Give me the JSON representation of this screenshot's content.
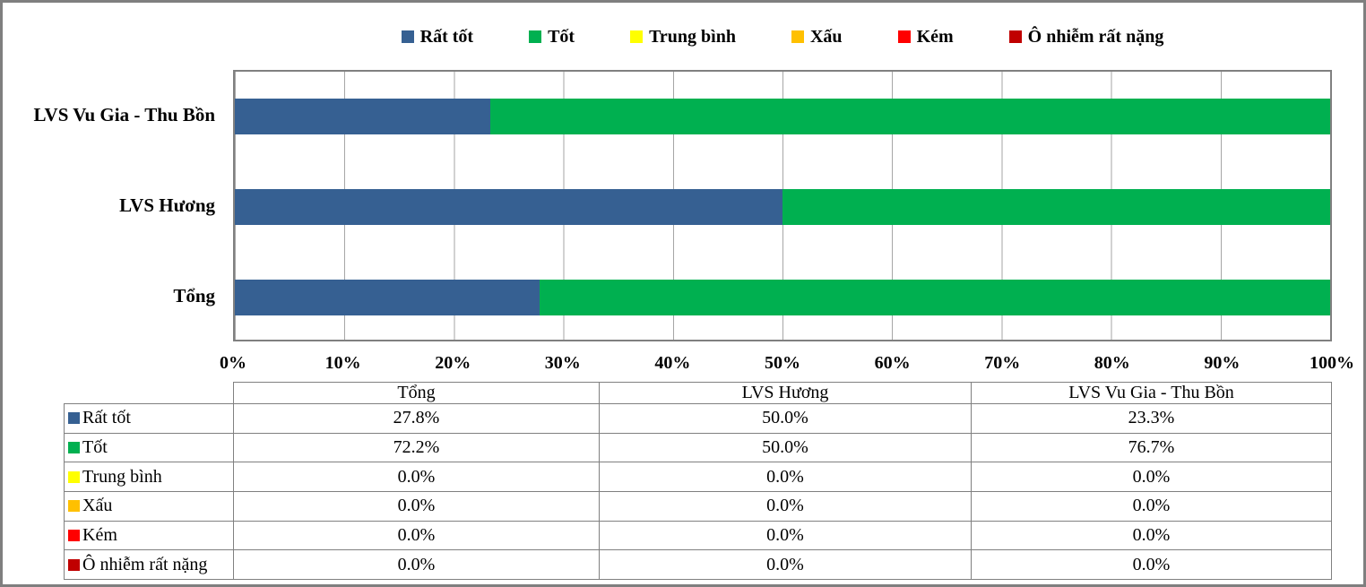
{
  "colors": {
    "very_good_blue": "#366092",
    "good_green": "#00B050",
    "average_yellow": "#FFFF00",
    "bad_orange": "#FFC000",
    "poor_red": "#FF0000",
    "very_polluted_dark_red": "#C00000",
    "plot_border": "#808080",
    "gridline": "#A6A6A6",
    "frame_border": "#7F7F7F"
  },
  "legend": {
    "items": [
      {
        "label": "Rất tốt",
        "color": "#366092"
      },
      {
        "label": "Tốt",
        "color": "#00B050"
      },
      {
        "label": "Trung bình",
        "color": "#FFFF00"
      },
      {
        "label": "Xấu",
        "color": "#FFC000"
      },
      {
        "label": "Kém",
        "color": "#FF0000"
      },
      {
        "label": "Ô nhiễm rất nặng",
        "color": "#C00000"
      }
    ]
  },
  "chart_data": {
    "type": "bar",
    "orientation": "horizontal",
    "stacked": true,
    "stacking": "percent",
    "title": "",
    "xlabel": "",
    "ylabel": "",
    "xlim": [
      0,
      100
    ],
    "x_ticks": [
      "0%",
      "10%",
      "20%",
      "30%",
      "40%",
      "50%",
      "60%",
      "70%",
      "80%",
      "90%",
      "100%"
    ],
    "grid": "vertical-only",
    "legend_position": "top",
    "categories": [
      "LVS Vu Gia - Thu Bồn",
      "LVS Hương",
      "Tổng"
    ],
    "series": [
      {
        "name": "Rất tốt",
        "color": "#366092",
        "values": [
          23.3,
          50.0,
          27.8
        ]
      },
      {
        "name": "Tốt",
        "color": "#00B050",
        "values": [
          76.7,
          50.0,
          72.2
        ]
      },
      {
        "name": "Trung bình",
        "color": "#FFFF00",
        "values": [
          0.0,
          0.0,
          0.0
        ]
      },
      {
        "name": "Xấu",
        "color": "#FFC000",
        "values": [
          0.0,
          0.0,
          0.0
        ]
      },
      {
        "name": "Kém",
        "color": "#FF0000",
        "values": [
          0.0,
          0.0,
          0.0
        ]
      },
      {
        "name": "Ô nhiễm rất nặng",
        "color": "#C00000",
        "values": [
          0.0,
          0.0,
          0.0
        ]
      }
    ]
  },
  "table": {
    "column_headers": [
      "Tổng",
      "LVS Hương",
      "LVS Vu Gia - Thu Bồn"
    ],
    "rows": [
      {
        "label": "Rất tốt",
        "color": "#366092",
        "values": [
          "27.8%",
          "50.0%",
          "23.3%"
        ]
      },
      {
        "label": "Tốt",
        "color": "#00B050",
        "values": [
          "72.2%",
          "50.0%",
          "76.7%"
        ]
      },
      {
        "label": "Trung bình",
        "color": "#FFFF00",
        "values": [
          "0.0%",
          "0.0%",
          "0.0%"
        ]
      },
      {
        "label": "Xấu",
        "color": "#FFC000",
        "values": [
          "0.0%",
          "0.0%",
          "0.0%"
        ]
      },
      {
        "label": "Kém",
        "color": "#FF0000",
        "values": [
          "0.0%",
          "0.0%",
          "0.0%"
        ]
      },
      {
        "label": "Ô nhiễm rất nặng",
        "color": "#C00000",
        "values": [
          "0.0%",
          "0.0%",
          "0.0%"
        ]
      }
    ]
  }
}
